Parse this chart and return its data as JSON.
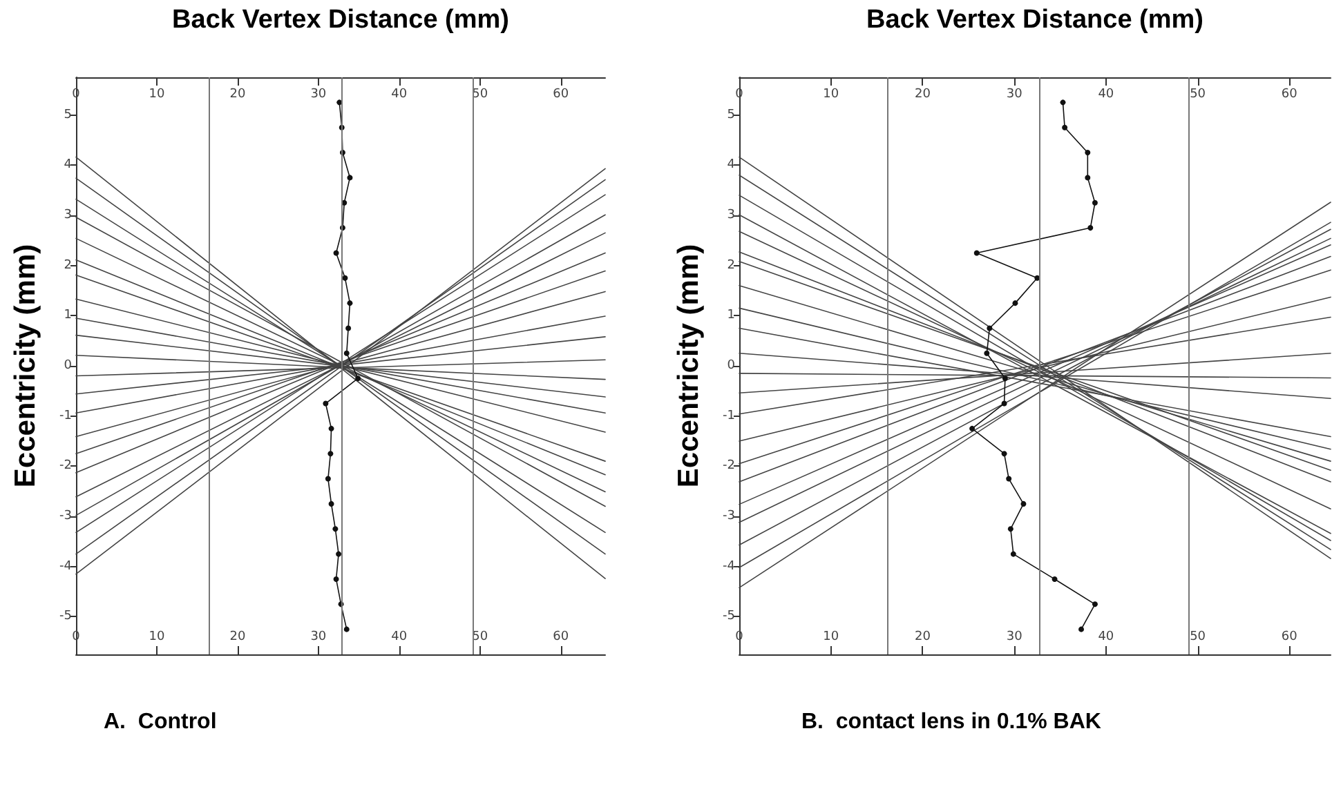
{
  "chart_data": [
    {
      "type": "line",
      "xlabel": "Back Vertex Distance (mm)",
      "ylabel": "Eccentricity (mm)",
      "xlim": [
        0,
        65.5
      ],
      "xticks": [
        0,
        10,
        20,
        30,
        40,
        50,
        60
      ],
      "x2lim": [
        0,
        65.5
      ],
      "x2ticks": [
        0,
        10,
        20,
        30,
        40,
        50,
        60
      ],
      "ylim": [
        -5.75,
        5.75
      ],
      "yticks": [
        -5,
        -4,
        -3,
        -2,
        -1,
        0,
        1,
        2,
        3,
        4,
        5
      ],
      "grid": false,
      "marker": "none",
      "annotations": [
        "A.  Control"
      ],
      "ref_lines": [
        {
          "axis": "x",
          "value": 16.4,
          "color": "#777777"
        },
        {
          "axis": "x",
          "value": 32.9,
          "color": "#777777"
        },
        {
          "axis": "x",
          "value": 49.2,
          "color": "#777777"
        }
      ],
      "series": [
        {
          "color": "#444444",
          "x": [
            0,
            65.5
          ],
          "values": [
            4.16,
            -4.24
          ]
        },
        {
          "color": "#444444",
          "x": [
            0,
            65.5
          ],
          "values": [
            3.74,
            -3.75
          ]
        },
        {
          "color": "#444444",
          "x": [
            0,
            65.5
          ],
          "values": [
            3.32,
            -3.32
          ]
        },
        {
          "color": "#444444",
          "x": [
            0,
            65.5
          ],
          "values": [
            2.96,
            -2.8
          ]
        },
        {
          "color": "#444444",
          "x": [
            0,
            65.5
          ],
          "values": [
            2.54,
            -2.51
          ]
        },
        {
          "color": "#444444",
          "x": [
            0,
            65.5
          ],
          "values": [
            2.11,
            -2.17
          ]
        },
        {
          "color": "#444444",
          "x": [
            0,
            65.5
          ],
          "values": [
            1.81,
            -1.9
          ]
        },
        {
          "color": "#444444",
          "x": [
            0,
            65.5
          ],
          "values": [
            1.33,
            -1.32
          ]
        },
        {
          "color": "#444444",
          "x": [
            0,
            65.5
          ],
          "values": [
            0.95,
            -0.94
          ]
        },
        {
          "color": "#444444",
          "x": [
            0,
            65.5
          ],
          "values": [
            0.61,
            -0.62
          ]
        },
        {
          "color": "#444444",
          "x": [
            0,
            65.5
          ],
          "values": [
            0.21,
            -0.27
          ]
        },
        {
          "color": "#444444",
          "x": [
            0,
            65.5
          ],
          "values": [
            -0.2,
            0.12
          ]
        },
        {
          "color": "#444444",
          "x": [
            0,
            65.5
          ],
          "values": [
            -0.56,
            0.58
          ]
        },
        {
          "color": "#444444",
          "x": [
            0,
            65.5
          ],
          "values": [
            -0.94,
            0.99
          ]
        },
        {
          "color": "#444444",
          "x": [
            0,
            65.5
          ],
          "values": [
            -1.41,
            1.48
          ]
        },
        {
          "color": "#444444",
          "x": [
            0,
            65.5
          ],
          "values": [
            -1.75,
            1.89
          ]
        },
        {
          "color": "#444444",
          "x": [
            0,
            65.5
          ],
          "values": [
            -2.13,
            2.25
          ]
        },
        {
          "color": "#444444",
          "x": [
            0,
            65.5
          ],
          "values": [
            -2.61,
            2.65
          ]
        },
        {
          "color": "#444444",
          "x": [
            0,
            65.5
          ],
          "values": [
            -2.98,
            3.01
          ]
        },
        {
          "color": "#444444",
          "x": [
            0,
            65.5
          ],
          "values": [
            -3.32,
            3.41
          ]
        },
        {
          "color": "#444444",
          "x": [
            0,
            65.5
          ],
          "values": [
            -3.75,
            3.71
          ]
        },
        {
          "color": "#444444",
          "x": [
            0,
            65.5
          ],
          "values": [
            -4.15,
            3.93
          ]
        },
        {
          "color": "#111111",
          "marker": "circle",
          "x": [
            32.6,
            32.9,
            33.0,
            33.9,
            33.2,
            33.0,
            32.2,
            33.3,
            33.9,
            33.7,
            33.5,
            34.9,
            30.9,
            31.6,
            31.5,
            31.2,
            31.6,
            32.1,
            32.5,
            32.2,
            32.8,
            33.5
          ],
          "values": [
            5.25,
            4.75,
            4.25,
            3.75,
            3.25,
            2.75,
            2.25,
            1.75,
            1.25,
            0.75,
            0.25,
            -0.25,
            -0.75,
            -1.25,
            -1.75,
            -2.25,
            -2.75,
            -3.25,
            -3.75,
            -4.25,
            -4.75,
            -5.25
          ]
        }
      ]
    },
    {
      "type": "line",
      "xlabel": "Back Vertex Distance (mm)",
      "ylabel": "Eccentricity (mm)",
      "xlim": [
        0,
        64.5
      ],
      "xticks": [
        0,
        10,
        20,
        30,
        40,
        50,
        60
      ],
      "x2lim": [
        0,
        64.5
      ],
      "x2ticks": [
        0,
        10,
        20,
        30,
        40,
        50,
        60
      ],
      "ylim": [
        -5.75,
        5.75
      ],
      "yticks": [
        -5,
        -4,
        -3,
        -2,
        -1,
        0,
        1,
        2,
        3,
        4,
        5
      ],
      "grid": false,
      "marker": "none",
      "annotations": [
        "B.  contact lens in 0.1% BAK"
      ],
      "ref_lines": [
        {
          "axis": "x",
          "value": 16.2,
          "color": "#777777"
        },
        {
          "axis": "x",
          "value": 32.8,
          "color": "#777777"
        },
        {
          "axis": "x",
          "value": 49.0,
          "color": "#777777"
        }
      ],
      "series": [
        {
          "color": "#444444",
          "x": [
            0,
            64.5
          ],
          "values": [
            4.16,
            -3.84
          ]
        },
        {
          "color": "#444444",
          "x": [
            0,
            64.5
          ],
          "values": [
            3.8,
            -3.66
          ]
        },
        {
          "color": "#444444",
          "x": [
            0,
            64.5
          ],
          "values": [
            3.4,
            -3.48
          ]
        },
        {
          "color": "#444444",
          "x": [
            0,
            64.5
          ],
          "values": [
            3.01,
            -3.34
          ]
        },
        {
          "color": "#444444",
          "x": [
            0,
            64.5
          ],
          "values": [
            2.68,
            -2.85
          ]
        },
        {
          "color": "#444444",
          "x": [
            0,
            64.5
          ],
          "values": [
            2.27,
            -2.31
          ]
        },
        {
          "color": "#444444",
          "x": [
            0,
            64.5
          ],
          "values": [
            2.08,
            -2.08
          ]
        },
        {
          "color": "#444444",
          "x": [
            0,
            64.5
          ],
          "values": [
            1.6,
            -1.9
          ]
        },
        {
          "color": "#444444",
          "x": [
            0,
            64.5
          ],
          "values": [
            1.15,
            -1.66
          ]
        },
        {
          "color": "#444444",
          "x": [
            0,
            64.5
          ],
          "values": [
            0.75,
            -1.41
          ]
        },
        {
          "color": "#444444",
          "x": [
            0,
            64.5
          ],
          "values": [
            0.25,
            -0.65
          ]
        },
        {
          "color": "#444444",
          "x": [
            0,
            64.5
          ],
          "values": [
            -0.15,
            -0.24
          ]
        },
        {
          "color": "#444444",
          "x": [
            0,
            64.5
          ],
          "values": [
            -0.54,
            0.25
          ]
        },
        {
          "color": "#444444",
          "x": [
            0,
            64.5
          ],
          "values": [
            -0.96,
            0.97
          ]
        },
        {
          "color": "#444444",
          "x": [
            0,
            64.5
          ],
          "values": [
            -1.5,
            1.37
          ]
        },
        {
          "color": "#444444",
          "x": [
            0,
            64.5
          ],
          "values": [
            -1.95,
            1.91
          ]
        },
        {
          "color": "#444444",
          "x": [
            0,
            64.5
          ],
          "values": [
            -2.31,
            2.18
          ]
        },
        {
          "color": "#444444",
          "x": [
            0,
            64.5
          ],
          "values": [
            -2.76,
            2.41
          ]
        },
        {
          "color": "#444444",
          "x": [
            0,
            64.5
          ],
          "values": [
            -3.12,
            2.54
          ]
        },
        {
          "color": "#444444",
          "x": [
            0,
            64.5
          ],
          "values": [
            -3.57,
            2.72
          ]
        },
        {
          "color": "#444444",
          "x": [
            0,
            64.5
          ],
          "values": [
            -4.02,
            2.86
          ]
        },
        {
          "color": "#444444",
          "x": [
            0,
            64.5
          ],
          "values": [
            -4.42,
            3.26
          ]
        },
        {
          "color": "#111111",
          "marker": "circle",
          "x": [
            35.3,
            35.5,
            38.0,
            38.0,
            38.8,
            38.3,
            25.9,
            32.5,
            30.1,
            27.3,
            27.0,
            29.0,
            28.9,
            25.4,
            28.9,
            29.4,
            31.0,
            29.6,
            29.9,
            34.4,
            38.8,
            37.3
          ],
          "values": [
            5.25,
            4.75,
            4.25,
            3.75,
            3.25,
            2.75,
            2.25,
            1.75,
            1.25,
            0.75,
            0.25,
            -0.25,
            -0.75,
            -1.25,
            -1.75,
            -2.25,
            -2.75,
            -3.25,
            -3.75,
            -4.25,
            -4.75,
            -5.25
          ]
        }
      ]
    }
  ]
}
